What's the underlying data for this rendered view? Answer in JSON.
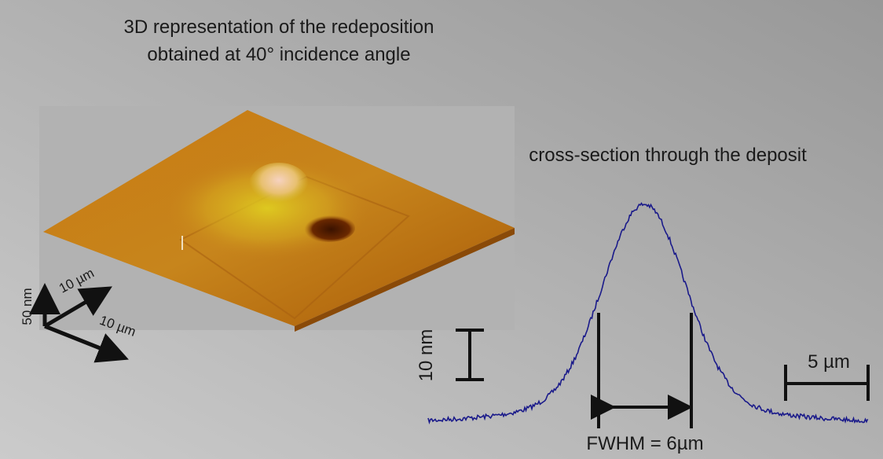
{
  "title": {
    "line1": "3D representation of the redeposition",
    "line2": "obtained at 40° incidence angle"
  },
  "surface": {
    "scale_z": "50 nm",
    "scale_x": "10 µm",
    "scale_y": "10 µm"
  },
  "profile": {
    "title": "cross-section through the deposit",
    "scale_height": "10 nm",
    "scale_width": "5 µm",
    "fwhm": "FWHM = 6µm"
  }
}
